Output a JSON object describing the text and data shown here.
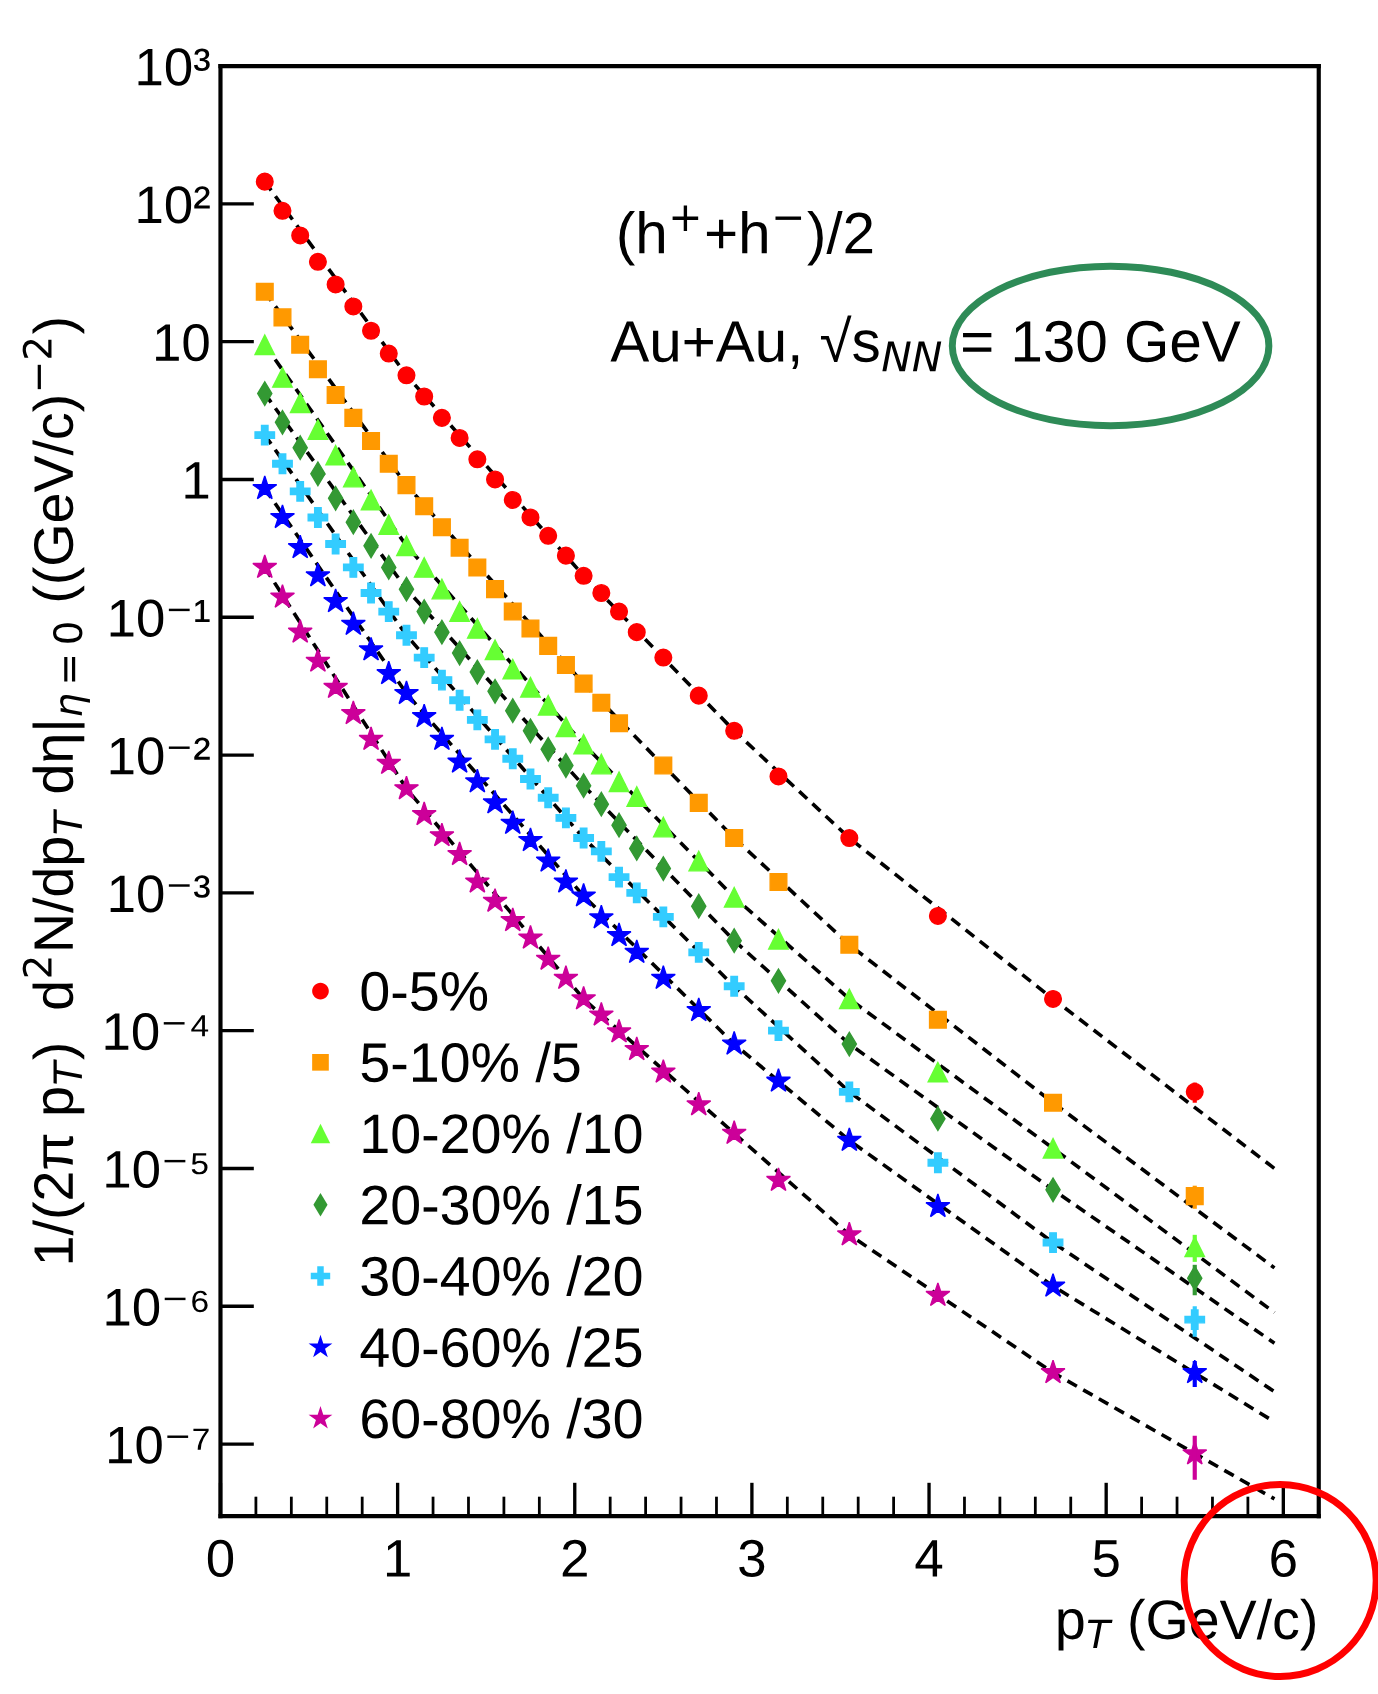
{
  "chart_data": {
    "type": "scatter",
    "xlabel": "p$_{T}$ (GeV/c)",
    "ylabel": "1/(2π p$_{T}$)  d$^{2}$N/dp$_{T}$ dη|$_{η=0}$ ((GeV/c)$^{−2}$)",
    "annotations": [
      "(h$^{+}$+h$^{−}$)/2",
      "Au+Au, √s$_{NN}$ = 130 GeV"
    ],
    "log": true,
    "legend": "bottom left",
    "xlim": [
      0,
      6.2
    ],
    "xticks": [
      0,
      1,
      2,
      3,
      4,
      5,
      6
    ],
    "ylim": [
      3e-08,
      1000
    ],
    "yticks": [
      {
        "value": 1e-07,
        "label": "10⁻⁷"
      },
      {
        "value": 1e-06,
        "label": "10⁻⁶"
      },
      {
        "value": 1e-05,
        "label": "10⁻⁵"
      },
      {
        "value": 0.0001,
        "label": "10⁻⁴"
      },
      {
        "value": 0.001,
        "label": "10⁻³"
      },
      {
        "value": 0.01,
        "label": "10⁻²"
      },
      {
        "value": 0.1,
        "label": "10⁻¹"
      },
      1,
      10,
      {
        "value": 100,
        "label": "10²"
      },
      {
        "value": 1000,
        "label": "10³"
      }
    ],
    "series": [
      {
        "name": "0-5%",
        "marker": "circle",
        "color": "#ff0000",
        "x": [
          0.25,
          0.35,
          0.45,
          0.55,
          0.65,
          0.75,
          0.85,
          0.95,
          1.05,
          1.15,
          1.25,
          1.35,
          1.45,
          1.55,
          1.65,
          1.75,
          1.85,
          1.95,
          2.05,
          2.15,
          2.25,
          2.35,
          2.5,
          2.7,
          2.9,
          3.15,
          3.55,
          4.05,
          4.7,
          5.5
        ],
        "values": [
          145,
          89,
          59,
          38,
          26,
          18,
          12,
          8.2,
          5.7,
          4.0,
          2.8,
          2.0,
          1.4,
          1.0,
          0.71,
          0.53,
          0.39,
          0.28,
          0.2,
          0.15,
          0.11,
          0.078,
          0.051,
          0.027,
          0.015,
          0.007,
          0.0025,
          0.00068,
          0.00017,
          3.6e-05
        ],
        "errors": [
          null,
          null,
          null,
          null,
          null,
          null,
          null,
          null,
          null,
          null,
          null,
          null,
          null,
          null,
          null,
          null,
          null,
          null,
          null,
          null,
          null,
          null,
          null,
          null,
          null,
          null,
          null,
          null,
          null,
          6e-06
        ]
      },
      {
        "name": "5-10% /5",
        "marker": "square",
        "color": "#ff9900",
        "x": [
          0.25,
          0.35,
          0.45,
          0.55,
          0.65,
          0.75,
          0.85,
          0.95,
          1.05,
          1.15,
          1.25,
          1.35,
          1.45,
          1.55,
          1.65,
          1.75,
          1.85,
          1.95,
          2.05,
          2.15,
          2.25,
          2.5,
          2.7,
          2.9,
          3.15,
          3.55,
          4.05,
          4.7,
          5.5
        ],
        "values": [
          23,
          15,
          9.5,
          6.3,
          4.1,
          2.8,
          1.9,
          1.3,
          0.91,
          0.64,
          0.45,
          0.32,
          0.23,
          0.16,
          0.11,
          0.083,
          0.062,
          0.045,
          0.033,
          0.024,
          0.017,
          0.0084,
          0.0045,
          0.0025,
          0.0012,
          0.00042,
          0.00012,
          3e-05,
          6.3e-06
        ],
        "errors": [
          null,
          null,
          null,
          null,
          null,
          null,
          null,
          null,
          null,
          null,
          null,
          null,
          null,
          null,
          null,
          null,
          null,
          null,
          null,
          null,
          null,
          null,
          null,
          null,
          null,
          null,
          null,
          null,
          1.2e-06
        ]
      },
      {
        "name": "10-20% /10",
        "marker": "triangle",
        "color": "#66ff33",
        "x": [
          0.25,
          0.35,
          0.45,
          0.55,
          0.65,
          0.75,
          0.85,
          0.95,
          1.05,
          1.15,
          1.25,
          1.35,
          1.45,
          1.55,
          1.65,
          1.75,
          1.85,
          1.95,
          2.05,
          2.15,
          2.25,
          2.35,
          2.5,
          2.7,
          2.9,
          3.15,
          3.55,
          4.05,
          4.7,
          5.5
        ],
        "values": [
          9.5,
          5.5,
          3.6,
          2.3,
          1.5,
          1.04,
          0.71,
          0.47,
          0.33,
          0.23,
          0.16,
          0.11,
          0.083,
          0.058,
          0.042,
          0.031,
          0.023,
          0.016,
          0.012,
          0.0086,
          0.0064,
          0.005,
          0.003,
          0.0017,
          0.00093,
          0.00046,
          0.00017,
          5e-05,
          1.4e-05,
          2.7e-06
        ],
        "errors": [
          null,
          null,
          null,
          null,
          null,
          null,
          null,
          null,
          null,
          null,
          null,
          null,
          null,
          null,
          null,
          null,
          null,
          null,
          null,
          null,
          null,
          null,
          null,
          null,
          null,
          null,
          null,
          null,
          null,
          6e-07
        ]
      },
      {
        "name": "20-30% /15",
        "marker": "diamond",
        "color": "#339933",
        "x": [
          0.25,
          0.35,
          0.45,
          0.55,
          0.65,
          0.75,
          0.85,
          0.95,
          1.05,
          1.15,
          1.25,
          1.35,
          1.45,
          1.55,
          1.65,
          1.75,
          1.85,
          1.95,
          2.05,
          2.15,
          2.25,
          2.35,
          2.5,
          2.7,
          2.9,
          3.15,
          3.55,
          4.05,
          4.7,
          5.5
        ],
        "values": [
          4.2,
          2.6,
          1.7,
          1.1,
          0.73,
          0.49,
          0.33,
          0.23,
          0.16,
          0.11,
          0.078,
          0.055,
          0.04,
          0.029,
          0.021,
          0.015,
          0.011,
          0.0084,
          0.006,
          0.0044,
          0.0031,
          0.0021,
          0.0015,
          0.0008,
          0.00045,
          0.00023,
          8e-05,
          2.3e-05,
          7e-06,
          1.6e-06
        ],
        "errors": [
          null,
          null,
          null,
          null,
          null,
          null,
          null,
          null,
          null,
          null,
          null,
          null,
          null,
          null,
          null,
          null,
          null,
          null,
          null,
          null,
          null,
          null,
          null,
          null,
          null,
          null,
          null,
          null,
          null,
          4e-07
        ]
      },
      {
        "name": "30-40% /20",
        "marker": "cross",
        "color": "#33ccff",
        "x": [
          0.25,
          0.35,
          0.45,
          0.55,
          0.65,
          0.75,
          0.85,
          0.95,
          1.05,
          1.15,
          1.25,
          1.35,
          1.45,
          1.55,
          1.65,
          1.75,
          1.85,
          1.95,
          2.05,
          2.15,
          2.25,
          2.35,
          2.5,
          2.7,
          2.9,
          3.15,
          3.55,
          4.05,
          4.7,
          5.5
        ],
        "values": [
          2.1,
          1.3,
          0.82,
          0.53,
          0.34,
          0.23,
          0.15,
          0.11,
          0.074,
          0.051,
          0.035,
          0.025,
          0.018,
          0.013,
          0.0094,
          0.0067,
          0.0049,
          0.0035,
          0.0025,
          0.002,
          0.0013,
          0.001,
          0.00067,
          0.00037,
          0.00021,
          0.0001,
          3.6e-05,
          1.1e-05,
          2.9e-06,
          8e-07
        ],
        "errors": [
          null,
          null,
          null,
          null,
          null,
          null,
          null,
          null,
          null,
          null,
          null,
          null,
          null,
          null,
          null,
          null,
          null,
          null,
          null,
          null,
          null,
          null,
          null,
          null,
          null,
          null,
          null,
          null,
          null,
          2e-07
        ]
      },
      {
        "name": "40-60% /25",
        "marker": "star",
        "color": "#0000ff",
        "x": [
          0.25,
          0.35,
          0.45,
          0.55,
          0.65,
          0.75,
          0.85,
          0.95,
          1.05,
          1.15,
          1.25,
          1.35,
          1.45,
          1.55,
          1.65,
          1.75,
          1.85,
          1.95,
          2.05,
          2.15,
          2.25,
          2.35,
          2.5,
          2.7,
          2.9,
          3.15,
          3.55,
          4.05,
          4.7,
          5.5
        ],
        "values": [
          0.86,
          0.53,
          0.32,
          0.2,
          0.13,
          0.089,
          0.058,
          0.039,
          0.028,
          0.019,
          0.013,
          0.0089,
          0.0064,
          0.0045,
          0.0032,
          0.0024,
          0.0017,
          0.0012,
          0.00095,
          0.00066,
          0.00049,
          0.00037,
          0.00024,
          0.00014,
          8e-05,
          4.3e-05,
          1.6e-05,
          5.3e-06,
          1.4e-06,
          3.3e-07
        ],
        "errors": [
          null,
          null,
          null,
          null,
          null,
          null,
          null,
          null,
          null,
          null,
          null,
          null,
          null,
          null,
          null,
          null,
          null,
          null,
          null,
          null,
          null,
          null,
          null,
          null,
          null,
          null,
          null,
          null,
          null,
          7e-08
        ]
      },
      {
        "name": "60-80% /30",
        "marker": "star",
        "color": "#cc0099",
        "x": [
          0.25,
          0.35,
          0.45,
          0.55,
          0.65,
          0.75,
          0.85,
          0.95,
          1.05,
          1.15,
          1.25,
          1.35,
          1.45,
          1.55,
          1.65,
          1.75,
          1.85,
          1.95,
          2.05,
          2.15,
          2.25,
          2.35,
          2.5,
          2.7,
          2.9,
          3.15,
          3.55,
          4.05,
          4.7,
          5.5
        ],
        "values": [
          0.23,
          0.14,
          0.078,
          0.048,
          0.031,
          0.02,
          0.013,
          0.0087,
          0.0057,
          0.0037,
          0.0026,
          0.0019,
          0.0012,
          0.00087,
          0.00063,
          0.00047,
          0.00033,
          0.00024,
          0.00017,
          0.00013,
          9.8e-05,
          7.3e-05,
          5e-05,
          2.9e-05,
          1.8e-05,
          8.2e-06,
          3.3e-06,
          1.2e-06,
          3.3e-07,
          8.5e-08
        ],
        "errors": [
          null,
          null,
          null,
          null,
          null,
          null,
          null,
          null,
          null,
          null,
          null,
          null,
          null,
          null,
          null,
          null,
          null,
          null,
          null,
          null,
          null,
          null,
          null,
          null,
          null,
          null,
          null,
          null,
          null,
          3e-08
        ]
      },
      {
        "type": "line",
        "line_style": "dashed",
        "color": "#000000",
        "x": [
          0.25,
          1.05,
          2.05,
          2.9,
          3.55,
          4.7,
          5.95
        ],
        "values": [
          145,
          5.7,
          0.2,
          0.015,
          0.0025,
          0.00017,
          1e-05
        ]
      },
      {
        "type": "line",
        "line_style": "dashed",
        "color": "#000000",
        "x": [
          0.25,
          1.05,
          2.05,
          2.9,
          3.55,
          4.7,
          5.95
        ],
        "values": [
          23,
          0.91,
          0.033,
          0.0025,
          0.00042,
          3e-05,
          1.9e-06
        ]
      },
      {
        "type": "line",
        "line_style": "dashed",
        "color": "#000000",
        "x": [
          0.25,
          1.05,
          2.05,
          2.9,
          3.55,
          4.7,
          5.95
        ],
        "values": [
          9.5,
          0.33,
          0.012,
          0.00093,
          0.00017,
          1.4e-05,
          9e-07
        ]
      },
      {
        "type": "line",
        "line_style": "dashed",
        "color": "#000000",
        "x": [
          0.25,
          1.05,
          2.05,
          2.9,
          3.55,
          4.7,
          5.95
        ],
        "values": [
          4.2,
          0.16,
          0.006,
          0.00045,
          8e-05,
          7e-06,
          5.4e-07
        ]
      },
      {
        "type": "line",
        "line_style": "dashed",
        "color": "#000000",
        "x": [
          0.25,
          1.05,
          2.05,
          2.9,
          3.55,
          4.7,
          5.95
        ],
        "values": [
          2.1,
          0.074,
          0.0025,
          0.00021,
          3.6e-05,
          2.9e-06,
          2.4e-07
        ]
      },
      {
        "type": "line",
        "line_style": "dashed",
        "color": "#000000",
        "x": [
          0.25,
          1.05,
          2.05,
          2.9,
          3.55,
          4.7,
          5.95
        ],
        "values": [
          0.86,
          0.028,
          0.00095,
          8e-05,
          1.6e-05,
          1.4e-06,
          1.45e-07
        ]
      },
      {
        "type": "line",
        "line_style": "dashed",
        "color": "#000000",
        "x": [
          0.25,
          1.05,
          2.05,
          2.9,
          3.55,
          4.7,
          5.95
        ],
        "values": [
          0.23,
          0.0057,
          0.00017,
          1.8e-05,
          3.3e-06,
          3.3e-07,
          4e-08
        ]
      }
    ]
  }
}
